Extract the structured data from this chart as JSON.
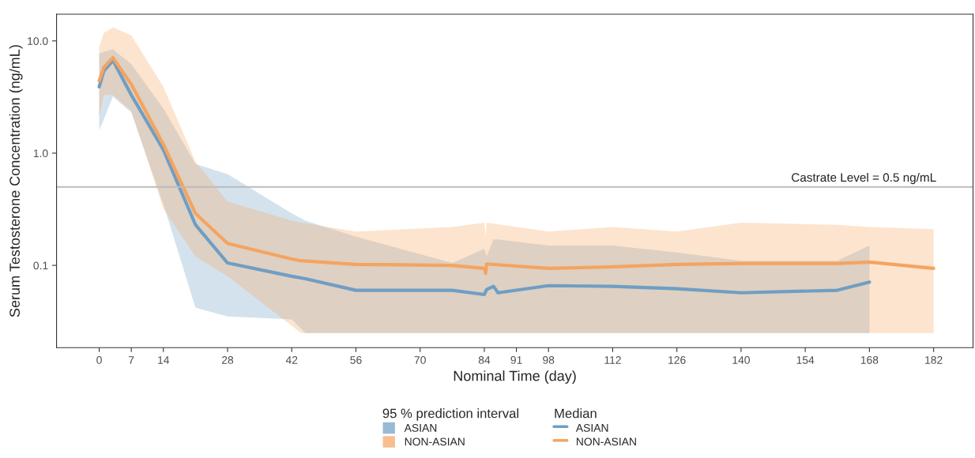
{
  "chart_data": {
    "type": "line",
    "xlabel": "Nominal Time (day)",
    "ylabel": "Serum Testosterone Concentration (ng/mL)",
    "legend_title": [
      "95 % prediction interval",
      "Median"
    ],
    "series": [
      {
        "name": "ASIAN",
        "color": "#6f9ec4",
        "x": [
          0,
          1,
          3,
          7,
          14,
          21,
          28,
          42,
          45,
          56,
          77,
          84,
          84.5,
          86,
          87,
          98,
          112,
          126,
          140,
          161,
          168
        ],
        "values": [
          3.9,
          5.4,
          6.7,
          3.3,
          1.07,
          0.23,
          0.105,
          0.08,
          0.076,
          0.06,
          0.06,
          0.055,
          0.061,
          0.065,
          0.057,
          0.066,
          0.065,
          0.062,
          0.057,
          0.06,
          0.071
        ],
        "lower": [
          1.6,
          2.0,
          3.2,
          2.3,
          0.35,
          0.042,
          0.035,
          0.033,
          0.025,
          0.025,
          0.025,
          0.025,
          0.025,
          0.025,
          0.025,
          0.025,
          0.025,
          0.025,
          0.025,
          0.025,
          0.025
        ],
        "upper": [
          7.7,
          8.0,
          8.4,
          6.2,
          2.5,
          0.8,
          0.65,
          0.29,
          0.25,
          0.18,
          0.105,
          0.14,
          0.12,
          0.17,
          0.17,
          0.15,
          0.15,
          0.13,
          0.11,
          0.11,
          0.15
        ]
      },
      {
        "name": "NON-ASIAN",
        "color": "#f4a460",
        "x": [
          0,
          1,
          3,
          7,
          14,
          21,
          28,
          42,
          44,
          56,
          77,
          84,
          84.3,
          84.5,
          98,
          112,
          126,
          140,
          161,
          168,
          182
        ],
        "values": [
          4.4,
          5.8,
          7.1,
          4.1,
          1.2,
          0.29,
          0.157,
          0.114,
          0.11,
          0.102,
          0.1,
          0.094,
          0.085,
          0.103,
          0.094,
          0.097,
          0.102,
          0.104,
          0.104,
          0.107,
          0.094
        ],
        "lower": [
          2.1,
          3.3,
          3.3,
          2.4,
          0.32,
          0.12,
          0.08,
          0.029,
          0.025,
          0.025,
          0.025,
          0.025,
          0.025,
          0.025,
          0.025,
          0.025,
          0.025,
          0.025,
          0.025,
          0.025,
          0.025
        ],
        "upper": [
          8.8,
          11.7,
          13.2,
          11.2,
          3.9,
          0.84,
          0.37,
          0.25,
          0.24,
          0.2,
          0.22,
          0.24,
          0.18,
          0.24,
          0.2,
          0.22,
          0.2,
          0.24,
          0.23,
          0.22,
          0.21
        ]
      }
    ],
    "log": "y",
    "xlim": [
      -9.3,
      190.6
    ],
    "ylim": [
      0.0185,
      17.3
    ],
    "xticks": [
      0,
      7,
      14,
      28,
      42,
      56,
      70,
      84,
      91,
      98,
      112,
      126,
      140,
      154,
      168,
      182
    ],
    "yticks": [
      {
        "value": 0.1,
        "label": "0.1"
      },
      {
        "value": 1,
        "label": "1.0"
      },
      {
        "value": 10,
        "label": "10.0"
      }
    ],
    "ref_lines": [
      {
        "axis": "y",
        "value": 0.5,
        "label": "Castrate Level = 0.5 ng/mL",
        "color": "#bbbbbb"
      }
    ],
    "grid": false,
    "legend": "bottom"
  }
}
